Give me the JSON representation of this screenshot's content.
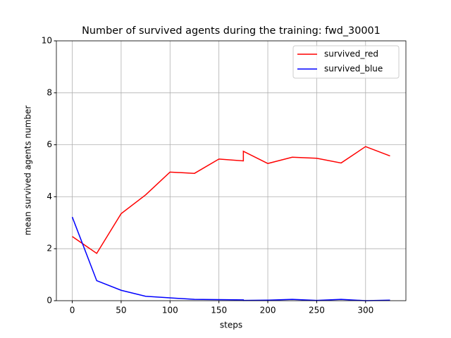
{
  "chart_data": {
    "type": "line",
    "title": "Number of survived agents during the training: fwd_30001",
    "x_label": "steps",
    "y_label": "mean survived agents number",
    "x": [
      0,
      25,
      50,
      75,
      100,
      125,
      150,
      175,
      175,
      200,
      225,
      250,
      275,
      300,
      325
    ],
    "series": [
      {
        "name": "survived_red",
        "color": "#ff0000",
        "values": [
          2.47,
          1.82,
          3.35,
          4.07,
          4.95,
          4.9,
          5.45,
          5.38,
          5.75,
          5.28,
          5.52,
          5.48,
          5.3,
          5.93,
          5.57
        ]
      },
      {
        "name": "survived_blue",
        "color": "#0000ff",
        "values": [
          3.22,
          0.77,
          0.4,
          0.17,
          0.11,
          0.05,
          0.04,
          0.03,
          0.01,
          0.02,
          0.05,
          0.01,
          0.05,
          0.0,
          0.02
        ]
      }
    ],
    "xlim": [
      -16.25,
      341.25
    ],
    "xticks": [
      0,
      50,
      100,
      150,
      200,
      250,
      300
    ],
    "ylim": [
      0,
      10
    ],
    "yticks": [
      0,
      2,
      4,
      6,
      8,
      10
    ],
    "grid": true,
    "legend": "upper-right"
  }
}
